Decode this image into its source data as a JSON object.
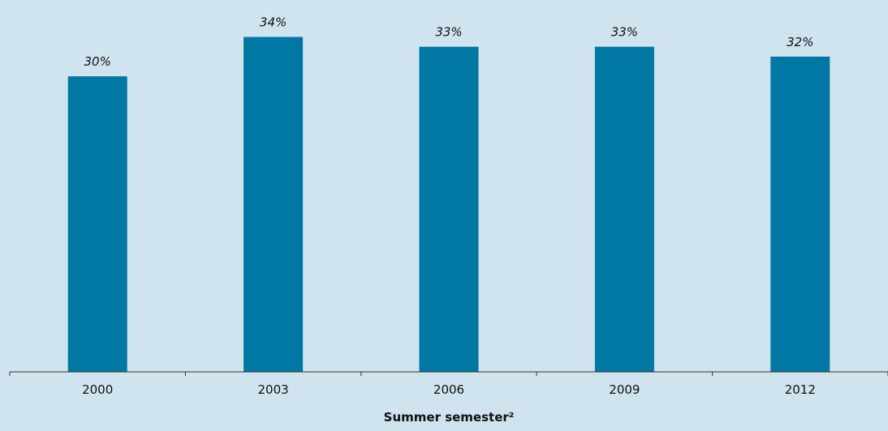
{
  "chart_data": {
    "type": "bar",
    "categories": [
      "2000",
      "2003",
      "2006",
      "2009",
      "2012"
    ],
    "values": [
      30,
      34,
      33,
      33,
      32
    ],
    "data_labels": [
      "30%",
      "34%",
      "33%",
      "33%",
      "32%"
    ],
    "xlabel": "Summer semester²",
    "ylabel": "",
    "ylim": [
      0,
      36
    ],
    "grid": false,
    "legend": "none"
  },
  "colors": {
    "background": "#cfe4ee",
    "bar": "#0078a4",
    "axis": "#333333"
  }
}
